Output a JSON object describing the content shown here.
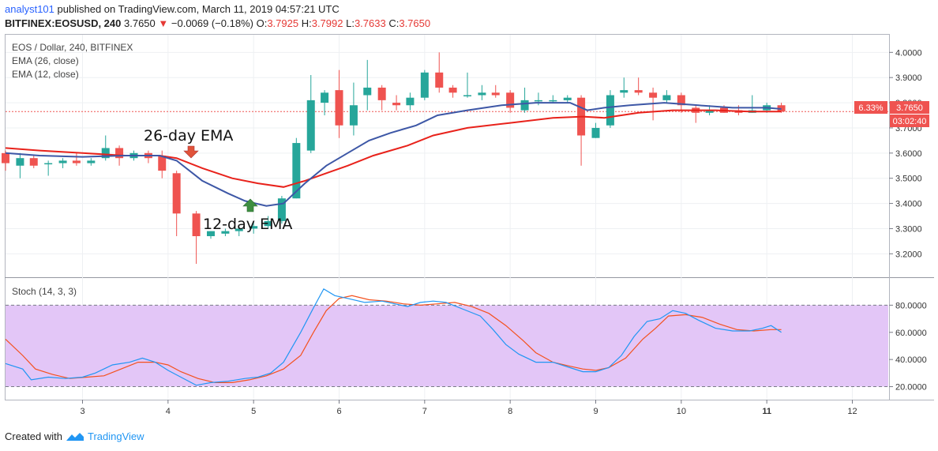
{
  "header": {
    "user": "analyst101",
    "published": "published on TradingView.com, March 11, 2019 04:57:21 UTC",
    "symbol": "BITFINEX:EOSUSD, 240",
    "price": "3.7650",
    "change_arrow": "▼",
    "change": "−0.0069 (−0.18%)",
    "o_label": "O:",
    "o_value": "3.7925",
    "h_label": "H:",
    "h_value": "3.7992",
    "l_label": "L:",
    "l_value": "3.7633",
    "c_label": "C:",
    "c_value": "3.7650"
  },
  "legend": {
    "title": "EOS / Dollar, 240, BITFINEX",
    "ema26": "EMA (26, close)",
    "ema12": "EMA (12, close)",
    "stoch": "Stoch (14, 3, 3)"
  },
  "annotations": {
    "ema26_label": "26-day EMA",
    "ema12_label": "12-day EMA"
  },
  "badges": {
    "percent": "6.33%",
    "price": "3.7650",
    "countdown": "03:02:40"
  },
  "footer": {
    "created_with": "Created with",
    "brand": "TradingView"
  },
  "colors": {
    "up": "#26a69a",
    "down": "#ef5350",
    "ema26": "#e8221b",
    "ema12": "#3d57a6",
    "stoch_k": "#2196f3",
    "stoch_d": "#f4511e",
    "stoch_band": "#e3c6f7",
    "badge": "#ef5350",
    "annotation_down_arrow": "#e0533a",
    "annotation_up_arrow": "#3e8e41"
  },
  "chart_data": {
    "type": "candlestick",
    "title": "EOS / Dollar, 240, BITFINEX",
    "price_axis_ticks": [
      "4.0000",
      "3.9000",
      "3.8000",
      "3.7000",
      "3.6000",
      "3.5000",
      "3.4000",
      "3.3000",
      "3.2000"
    ],
    "stoch_axis_ticks": [
      "80.0000",
      "60.0000",
      "40.0000",
      "20.0000"
    ],
    "x_ticks": [
      {
        "x": 3,
        "label": "3"
      },
      {
        "x": 4,
        "label": "4"
      },
      {
        "x": 5,
        "label": "5"
      },
      {
        "x": 6,
        "label": "6"
      },
      {
        "x": 7,
        "label": "7"
      },
      {
        "x": 8,
        "label": "8"
      },
      {
        "x": 9,
        "label": "9"
      },
      {
        "x": 10,
        "label": "10"
      },
      {
        "x": 11,
        "label": "11",
        "bold": true
      },
      {
        "x": 12,
        "label": "12"
      }
    ],
    "price_range": [
      3.11,
      4.07
    ],
    "day_range": [
      2.1,
      12.42
    ],
    "last_price": 3.765,
    "candles": [
      {
        "d": 2.1,
        "o": 3.6,
        "h": 3.61,
        "l": 3.53,
        "c": 3.56
      },
      {
        "d": 2.27,
        "o": 3.55,
        "h": 3.6,
        "l": 3.5,
        "c": 3.58
      },
      {
        "d": 2.43,
        "o": 3.58,
        "h": 3.59,
        "l": 3.54,
        "c": 3.55
      },
      {
        "d": 2.6,
        "o": 3.56,
        "h": 3.57,
        "l": 3.51,
        "c": 3.56
      },
      {
        "d": 2.77,
        "o": 3.56,
        "h": 3.58,
        "l": 3.54,
        "c": 3.57
      },
      {
        "d": 2.93,
        "o": 3.57,
        "h": 3.6,
        "l": 3.55,
        "c": 3.56
      },
      {
        "d": 3.1,
        "o": 3.56,
        "h": 3.58,
        "l": 3.55,
        "c": 3.57
      },
      {
        "d": 3.27,
        "o": 3.58,
        "h": 3.67,
        "l": 3.57,
        "c": 3.62
      },
      {
        "d": 3.43,
        "o": 3.62,
        "h": 3.63,
        "l": 3.55,
        "c": 3.58
      },
      {
        "d": 3.6,
        "o": 3.58,
        "h": 3.61,
        "l": 3.57,
        "c": 3.6
      },
      {
        "d": 3.77,
        "o": 3.6,
        "h": 3.61,
        "l": 3.56,
        "c": 3.58
      },
      {
        "d": 3.93,
        "o": 3.59,
        "h": 3.61,
        "l": 3.5,
        "c": 3.53
      },
      {
        "d": 4.1,
        "o": 3.52,
        "h": 3.53,
        "l": 3.27,
        "c": 3.36
      },
      {
        "d": 4.33,
        "o": 3.36,
        "h": 3.37,
        "l": 3.16,
        "c": 3.27
      },
      {
        "d": 4.5,
        "o": 3.27,
        "h": 3.29,
        "l": 3.26,
        "c": 3.29
      },
      {
        "d": 4.67,
        "o": 3.28,
        "h": 3.3,
        "l": 3.27,
        "c": 3.29
      },
      {
        "d": 4.83,
        "o": 3.29,
        "h": 3.31,
        "l": 3.27,
        "c": 3.3
      },
      {
        "d": 5.0,
        "o": 3.3,
        "h": 3.33,
        "l": 3.28,
        "c": 3.31
      },
      {
        "d": 5.17,
        "o": 3.31,
        "h": 3.35,
        "l": 3.3,
        "c": 3.33
      },
      {
        "d": 5.33,
        "o": 3.33,
        "h": 3.43,
        "l": 3.32,
        "c": 3.42
      },
      {
        "d": 5.5,
        "o": 3.42,
        "h": 3.66,
        "l": 3.42,
        "c": 3.64
      },
      {
        "d": 5.67,
        "o": 3.61,
        "h": 3.91,
        "l": 3.6,
        "c": 3.81
      },
      {
        "d": 5.83,
        "o": 3.8,
        "h": 3.85,
        "l": 3.75,
        "c": 3.84
      },
      {
        "d": 6.0,
        "o": 3.85,
        "h": 3.93,
        "l": 3.66,
        "c": 3.71
      },
      {
        "d": 6.17,
        "o": 3.71,
        "h": 3.88,
        "l": 3.67,
        "c": 3.79
      },
      {
        "d": 6.33,
        "o": 3.83,
        "h": 3.97,
        "l": 3.77,
        "c": 3.86
      },
      {
        "d": 6.5,
        "o": 3.86,
        "h": 3.87,
        "l": 3.77,
        "c": 3.81
      },
      {
        "d": 6.67,
        "o": 3.8,
        "h": 3.83,
        "l": 3.77,
        "c": 3.79
      },
      {
        "d": 6.83,
        "o": 3.79,
        "h": 3.84,
        "l": 3.77,
        "c": 3.82
      },
      {
        "d": 7.0,
        "o": 3.82,
        "h": 3.93,
        "l": 3.81,
        "c": 3.92
      },
      {
        "d": 7.17,
        "o": 3.92,
        "h": 4.0,
        "l": 3.84,
        "c": 3.86
      },
      {
        "d": 7.33,
        "o": 3.86,
        "h": 3.87,
        "l": 3.82,
        "c": 3.84
      },
      {
        "d": 7.5,
        "o": 3.83,
        "h": 3.92,
        "l": 3.82,
        "c": 3.83
      },
      {
        "d": 7.67,
        "o": 3.83,
        "h": 3.87,
        "l": 3.81,
        "c": 3.84
      },
      {
        "d": 7.83,
        "o": 3.84,
        "h": 3.87,
        "l": 3.82,
        "c": 3.83
      },
      {
        "d": 8.0,
        "o": 3.84,
        "h": 3.85,
        "l": 3.76,
        "c": 3.78
      },
      {
        "d": 8.17,
        "o": 3.77,
        "h": 3.86,
        "l": 3.76,
        "c": 3.81
      },
      {
        "d": 8.33,
        "o": 3.81,
        "h": 3.84,
        "l": 3.79,
        "c": 3.81
      },
      {
        "d": 8.5,
        "o": 3.81,
        "h": 3.83,
        "l": 3.8,
        "c": 3.81
      },
      {
        "d": 8.67,
        "o": 3.81,
        "h": 3.83,
        "l": 3.8,
        "c": 3.82
      },
      {
        "d": 8.83,
        "o": 3.82,
        "h": 3.83,
        "l": 3.55,
        "c": 3.67
      },
      {
        "d": 9.0,
        "o": 3.66,
        "h": 3.72,
        "l": 3.66,
        "c": 3.7
      },
      {
        "d": 9.17,
        "o": 3.71,
        "h": 3.85,
        "l": 3.7,
        "c": 3.83
      },
      {
        "d": 9.33,
        "o": 3.84,
        "h": 3.9,
        "l": 3.82,
        "c": 3.85
      },
      {
        "d": 9.5,
        "o": 3.85,
        "h": 3.9,
        "l": 3.83,
        "c": 3.84
      },
      {
        "d": 9.67,
        "o": 3.84,
        "h": 3.86,
        "l": 3.73,
        "c": 3.82
      },
      {
        "d": 9.83,
        "o": 3.81,
        "h": 3.85,
        "l": 3.8,
        "c": 3.83
      },
      {
        "d": 10.0,
        "o": 3.83,
        "h": 3.84,
        "l": 3.76,
        "c": 3.79
      },
      {
        "d": 10.17,
        "o": 3.78,
        "h": 3.79,
        "l": 3.72,
        "c": 3.76
      },
      {
        "d": 10.33,
        "o": 3.76,
        "h": 3.79,
        "l": 3.75,
        "c": 3.77
      },
      {
        "d": 10.5,
        "o": 3.78,
        "h": 3.79,
        "l": 3.76,
        "c": 3.76
      },
      {
        "d": 10.67,
        "o": 3.77,
        "h": 3.79,
        "l": 3.75,
        "c": 3.76
      },
      {
        "d": 10.83,
        "o": 3.76,
        "h": 3.83,
        "l": 3.76,
        "c": 3.77
      },
      {
        "d": 11.0,
        "o": 3.77,
        "h": 3.8,
        "l": 3.76,
        "c": 3.79
      },
      {
        "d": 11.17,
        "o": 3.79,
        "h": 3.8,
        "l": 3.76,
        "c": 3.765
      }
    ],
    "ema26": [
      [
        2.1,
        3.62
      ],
      [
        2.5,
        3.61
      ],
      [
        3.0,
        3.6
      ],
      [
        3.5,
        3.59
      ],
      [
        3.9,
        3.59
      ],
      [
        4.1,
        3.58
      ],
      [
        4.4,
        3.54
      ],
      [
        4.75,
        3.5
      ],
      [
        5.05,
        3.48
      ],
      [
        5.35,
        3.465
      ],
      [
        5.6,
        3.49
      ],
      [
        5.85,
        3.52
      ],
      [
        6.1,
        3.55
      ],
      [
        6.4,
        3.59
      ],
      [
        6.8,
        3.63
      ],
      [
        7.1,
        3.67
      ],
      [
        7.5,
        3.7
      ],
      [
        8.0,
        3.72
      ],
      [
        8.5,
        3.74
      ],
      [
        8.85,
        3.745
      ],
      [
        9.1,
        3.74
      ],
      [
        9.5,
        3.76
      ],
      [
        9.9,
        3.77
      ],
      [
        10.4,
        3.77
      ],
      [
        10.8,
        3.765
      ],
      [
        11.17,
        3.765
      ]
    ],
    "ema12": [
      [
        2.1,
        3.6
      ],
      [
        2.5,
        3.59
      ],
      [
        3.0,
        3.585
      ],
      [
        3.5,
        3.59
      ],
      [
        3.9,
        3.59
      ],
      [
        4.1,
        3.57
      ],
      [
        4.4,
        3.49
      ],
      [
        4.7,
        3.44
      ],
      [
        4.9,
        3.41
      ],
      [
        5.15,
        3.39
      ],
      [
        5.35,
        3.4
      ],
      [
        5.6,
        3.48
      ],
      [
        5.85,
        3.55
      ],
      [
        6.1,
        3.6
      ],
      [
        6.35,
        3.65
      ],
      [
        6.6,
        3.68
      ],
      [
        6.9,
        3.71
      ],
      [
        7.15,
        3.75
      ],
      [
        7.5,
        3.77
      ],
      [
        7.9,
        3.79
      ],
      [
        8.3,
        3.8
      ],
      [
        8.7,
        3.8
      ],
      [
        8.9,
        3.77
      ],
      [
        9.1,
        3.78
      ],
      [
        9.4,
        3.79
      ],
      [
        9.8,
        3.8
      ],
      [
        10.2,
        3.79
      ],
      [
        10.6,
        3.78
      ],
      [
        11.0,
        3.78
      ],
      [
        11.17,
        3.775
      ]
    ],
    "stoch_range": [
      11,
      100
    ],
    "stoch_k": [
      [
        2.1,
        37
      ],
      [
        2.3,
        33
      ],
      [
        2.4,
        25
      ],
      [
        2.6,
        27
      ],
      [
        2.8,
        26
      ],
      [
        3.0,
        27
      ],
      [
        3.15,
        30
      ],
      [
        3.35,
        36
      ],
      [
        3.55,
        38
      ],
      [
        3.7,
        41
      ],
      [
        3.85,
        38
      ],
      [
        4.0,
        32
      ],
      [
        4.15,
        27
      ],
      [
        4.33,
        21
      ],
      [
        4.5,
        23
      ],
      [
        4.7,
        24
      ],
      [
        4.9,
        26
      ],
      [
        5.05,
        27
      ],
      [
        5.2,
        30
      ],
      [
        5.35,
        38
      ],
      [
        5.55,
        60
      ],
      [
        5.7,
        78
      ],
      [
        5.82,
        92
      ],
      [
        5.95,
        87
      ],
      [
        6.1,
        85
      ],
      [
        6.3,
        82
      ],
      [
        6.5,
        83
      ],
      [
        6.65,
        81
      ],
      [
        6.8,
        79
      ],
      [
        6.95,
        82
      ],
      [
        7.1,
        83
      ],
      [
        7.25,
        82
      ],
      [
        7.45,
        77
      ],
      [
        7.65,
        72
      ],
      [
        7.8,
        62
      ],
      [
        7.95,
        51
      ],
      [
        8.1,
        44
      ],
      [
        8.3,
        38
      ],
      [
        8.5,
        38
      ],
      [
        8.7,
        34
      ],
      [
        8.85,
        31
      ],
      [
        9.0,
        31
      ],
      [
        9.15,
        34
      ],
      [
        9.3,
        43
      ],
      [
        9.45,
        57
      ],
      [
        9.6,
        68
      ],
      [
        9.75,
        70
      ],
      [
        9.9,
        76
      ],
      [
        10.05,
        74
      ],
      [
        10.2,
        69
      ],
      [
        10.4,
        63
      ],
      [
        10.6,
        61
      ],
      [
        10.8,
        61
      ],
      [
        10.95,
        63
      ],
      [
        11.05,
        65
      ],
      [
        11.17,
        60
      ]
    ],
    "stoch_d": [
      [
        2.1,
        55
      ],
      [
        2.3,
        43
      ],
      [
        2.45,
        33
      ],
      [
        2.65,
        29
      ],
      [
        2.85,
        26
      ],
      [
        3.05,
        27
      ],
      [
        3.25,
        28
      ],
      [
        3.45,
        33
      ],
      [
        3.65,
        38
      ],
      [
        3.85,
        38
      ],
      [
        4.0,
        36
      ],
      [
        4.15,
        31
      ],
      [
        4.35,
        26
      ],
      [
        4.55,
        23
      ],
      [
        4.75,
        23
      ],
      [
        4.95,
        25
      ],
      [
        5.15,
        28
      ],
      [
        5.35,
        33
      ],
      [
        5.55,
        43
      ],
      [
        5.7,
        60
      ],
      [
        5.85,
        76
      ],
      [
        6.0,
        85
      ],
      [
        6.15,
        87
      ],
      [
        6.35,
        84
      ],
      [
        6.55,
        83
      ],
      [
        6.75,
        81
      ],
      [
        6.95,
        80
      ],
      [
        7.15,
        81
      ],
      [
        7.35,
        82
      ],
      [
        7.55,
        79
      ],
      [
        7.75,
        74
      ],
      [
        7.95,
        65
      ],
      [
        8.15,
        54
      ],
      [
        8.3,
        45
      ],
      [
        8.5,
        38
      ],
      [
        8.7,
        35
      ],
      [
        8.85,
        33
      ],
      [
        9.0,
        32
      ],
      [
        9.15,
        34
      ],
      [
        9.35,
        41
      ],
      [
        9.55,
        55
      ],
      [
        9.7,
        63
      ],
      [
        9.85,
        72
      ],
      [
        10.05,
        73
      ],
      [
        10.25,
        71
      ],
      [
        10.45,
        66
      ],
      [
        10.65,
        62
      ],
      [
        10.85,
        61
      ],
      [
        11.05,
        62
      ],
      [
        11.17,
        62
      ]
    ],
    "stoch_levels": [
      80,
      20
    ]
  }
}
